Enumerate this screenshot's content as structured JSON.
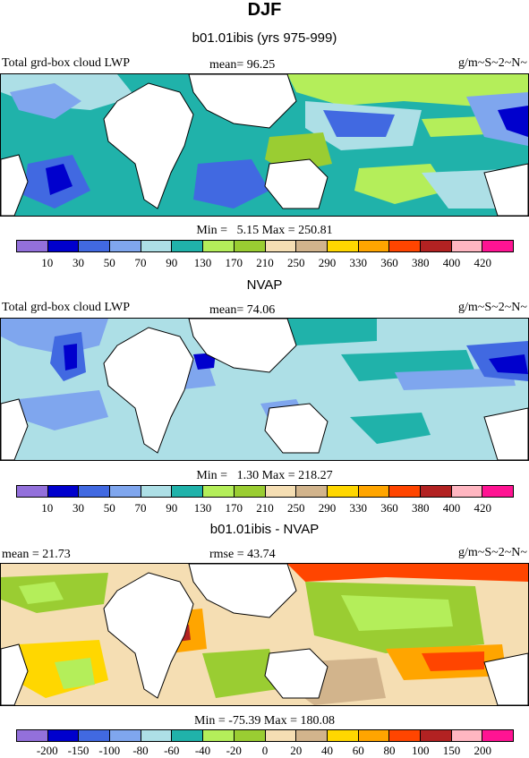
{
  "page": {
    "title": "DJF",
    "subtitle": "b01.01ibis (yrs 975-999)"
  },
  "panel1": {
    "left_label": "Total grd-box cloud LWP",
    "mean_text": "mean=  96.25",
    "units": "g/m~S~2~N~",
    "minmax": "Min =   5.15 Max = 250.81",
    "colorbar_labels": [
      "10",
      "30",
      "50",
      "70",
      "90",
      "130",
      "170",
      "210",
      "250",
      "290",
      "330",
      "360",
      "380",
      "400",
      "420"
    ],
    "colors": [
      "#9370DB",
      "#0000CD",
      "#4169E1",
      "#7FA6EE",
      "#ADDFE6",
      "#20B2AA",
      "#B4EE5A",
      "#9ACD32",
      "#F5DEB3",
      "#D2B48C",
      "#FFD700",
      "#FFA500",
      "#FF4500",
      "#B22222",
      "#FFB6C1",
      "#FF1493"
    ]
  },
  "panel2_heading": "NVAP",
  "panel2": {
    "left_label": "Total grd-box cloud LWP",
    "mean_text": "mean=  74.06",
    "units": "g/m~S~2~N~",
    "minmax": "Min =   1.30 Max = 218.27",
    "colorbar_labels": [
      "10",
      "30",
      "50",
      "70",
      "90",
      "130",
      "170",
      "210",
      "250",
      "290",
      "330",
      "360",
      "380",
      "400",
      "420"
    ],
    "colors": [
      "#9370DB",
      "#0000CD",
      "#4169E1",
      "#7FA6EE",
      "#ADDFE6",
      "#20B2AA",
      "#B4EE5A",
      "#9ACD32",
      "#F5DEB3",
      "#D2B48C",
      "#FFD700",
      "#FFA500",
      "#FF4500",
      "#B22222",
      "#FFB6C1",
      "#FF1493"
    ]
  },
  "panel3_heading": "b01.01ibis - NVAP",
  "panel3": {
    "mean_text": "mean =  21.73",
    "rmse_text": "rmse =  43.74",
    "units": "g/m~S~2~N~",
    "minmax": "Min = -75.39 Max = 180.08",
    "colorbar_labels": [
      "-200",
      "-150",
      "-100",
      "-80",
      "-60",
      "-40",
      "-20",
      "0",
      "20",
      "40",
      "60",
      "80",
      "100",
      "150",
      "200"
    ],
    "colors": [
      "#9370DB",
      "#0000CD",
      "#4169E1",
      "#7FA6EE",
      "#ADDFE6",
      "#20B2AA",
      "#B4EE5A",
      "#9ACD32",
      "#F5DEB3",
      "#D2B48C",
      "#FFD700",
      "#FFA500",
      "#FF4500",
      "#B22222",
      "#FFB6C1",
      "#FF1493"
    ]
  }
}
